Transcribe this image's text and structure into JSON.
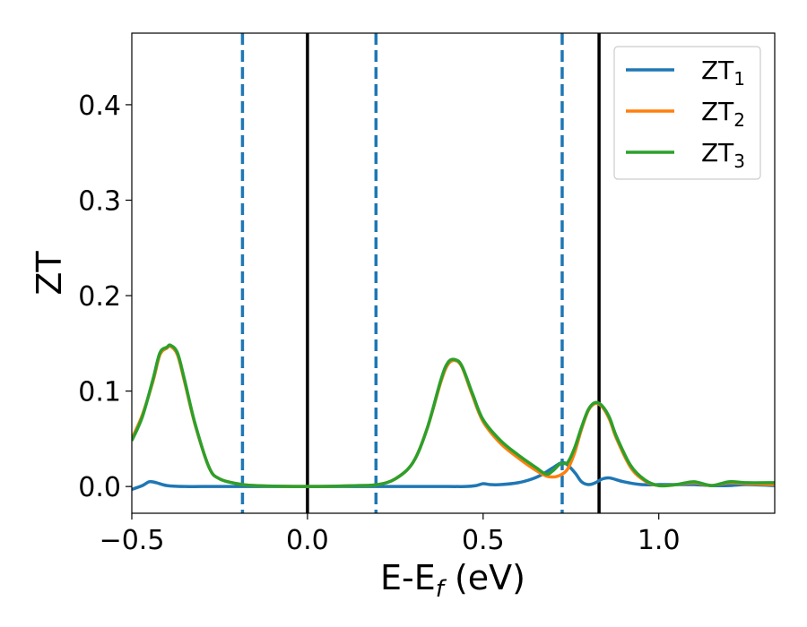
{
  "chart_data": {
    "type": "line",
    "xlabel": "E-E",
    "xlabel_sub": "f",
    "xlabel_unit": " (eV)",
    "ylabel": "ZT",
    "xlim": [
      -0.5,
      1.33
    ],
    "ylim": [
      -0.028,
      0.475
    ],
    "xticks": [
      -0.5,
      0.0,
      0.5,
      1.0
    ],
    "xtick_labels": [
      "−0.5",
      "0.0",
      "0.5",
      "1.0"
    ],
    "yticks": [
      0.0,
      0.1,
      0.2,
      0.3,
      0.4
    ],
    "ytick_labels": [
      "0.0",
      "0.1",
      "0.2",
      "0.3",
      "0.4"
    ],
    "grid": false,
    "legend_position": "top-right",
    "vlines_solid": [
      0.0,
      0.83
    ],
    "vlines_dashed": [
      -0.185,
      0.195,
      0.725
    ],
    "series": [
      {
        "name": "ZT",
        "sub": "1",
        "color": "#1f77b4",
        "x": [
          -0.5,
          -0.47,
          -0.45,
          -0.43,
          -0.4,
          -0.35,
          -0.3,
          -0.2,
          0.0,
          0.2,
          0.4,
          0.45,
          0.48,
          0.5,
          0.52,
          0.55,
          0.6,
          0.64,
          0.67,
          0.7,
          0.73,
          0.76,
          0.78,
          0.8,
          0.82,
          0.84,
          0.86,
          0.9,
          0.95,
          1.0,
          1.05,
          1.1,
          1.15,
          1.2,
          1.25,
          1.33
        ],
        "y": [
          -0.003,
          0.001,
          0.005,
          0.004,
          0.001,
          0.0,
          0.0,
          0.0,
          0.0,
          0.0,
          0.0,
          0.0,
          0.001,
          0.003,
          0.002,
          0.002,
          0.004,
          0.008,
          0.013,
          0.02,
          0.025,
          0.015,
          0.005,
          0.002,
          0.004,
          0.008,
          0.009,
          0.005,
          0.002,
          0.002,
          0.002,
          0.002,
          0.001,
          0.001,
          0.002,
          0.001
        ]
      },
      {
        "name": "ZT",
        "sub": "2",
        "color": "#ff7f0e",
        "x": [
          -0.5,
          -0.47,
          -0.44,
          -0.42,
          -0.4,
          -0.39,
          -0.37,
          -0.35,
          -0.32,
          -0.28,
          -0.25,
          -0.2,
          -0.15,
          0.0,
          0.15,
          0.2,
          0.25,
          0.3,
          0.34,
          0.38,
          0.4,
          0.42,
          0.44,
          0.47,
          0.5,
          0.55,
          0.6,
          0.65,
          0.68,
          0.7,
          0.72,
          0.74,
          0.76,
          0.78,
          0.8,
          0.82,
          0.84,
          0.86,
          0.88,
          0.92,
          0.96,
          1.0,
          1.05,
          1.1,
          1.15,
          1.2,
          1.25,
          1.33
        ],
        "y": [
          0.05,
          0.075,
          0.11,
          0.138,
          0.145,
          0.147,
          0.138,
          0.11,
          0.065,
          0.02,
          0.008,
          0.003,
          0.001,
          0.0,
          0.001,
          0.002,
          0.008,
          0.025,
          0.06,
          0.11,
          0.128,
          0.132,
          0.125,
          0.095,
          0.068,
          0.045,
          0.03,
          0.017,
          0.011,
          0.01,
          0.012,
          0.018,
          0.035,
          0.06,
          0.08,
          0.087,
          0.083,
          0.07,
          0.05,
          0.02,
          0.006,
          0.001,
          0.002,
          0.004,
          0.001,
          0.004,
          0.003,
          0.002
        ]
      },
      {
        "name": "ZT",
        "sub": "3",
        "color": "#2ca02c",
        "x": [
          -0.5,
          -0.47,
          -0.44,
          -0.42,
          -0.4,
          -0.39,
          -0.37,
          -0.35,
          -0.32,
          -0.28,
          -0.25,
          -0.2,
          -0.15,
          0.0,
          0.15,
          0.2,
          0.25,
          0.3,
          0.34,
          0.38,
          0.4,
          0.42,
          0.44,
          0.47,
          0.5,
          0.55,
          0.6,
          0.65,
          0.68,
          0.7,
          0.72,
          0.74,
          0.76,
          0.78,
          0.8,
          0.82,
          0.84,
          0.86,
          0.88,
          0.92,
          0.96,
          1.0,
          1.05,
          1.1,
          1.15,
          1.2,
          1.25,
          1.33
        ],
        "y": [
          0.048,
          0.073,
          0.112,
          0.14,
          0.146,
          0.148,
          0.14,
          0.112,
          0.066,
          0.02,
          0.008,
          0.003,
          0.001,
          0.0,
          0.001,
          0.002,
          0.008,
          0.025,
          0.06,
          0.112,
          0.13,
          0.133,
          0.126,
          0.097,
          0.07,
          0.048,
          0.033,
          0.02,
          0.013,
          0.017,
          0.024,
          0.025,
          0.04,
          0.062,
          0.081,
          0.088,
          0.084,
          0.072,
          0.052,
          0.022,
          0.007,
          0.001,
          0.002,
          0.005,
          0.001,
          0.005,
          0.004,
          0.004
        ]
      }
    ]
  }
}
